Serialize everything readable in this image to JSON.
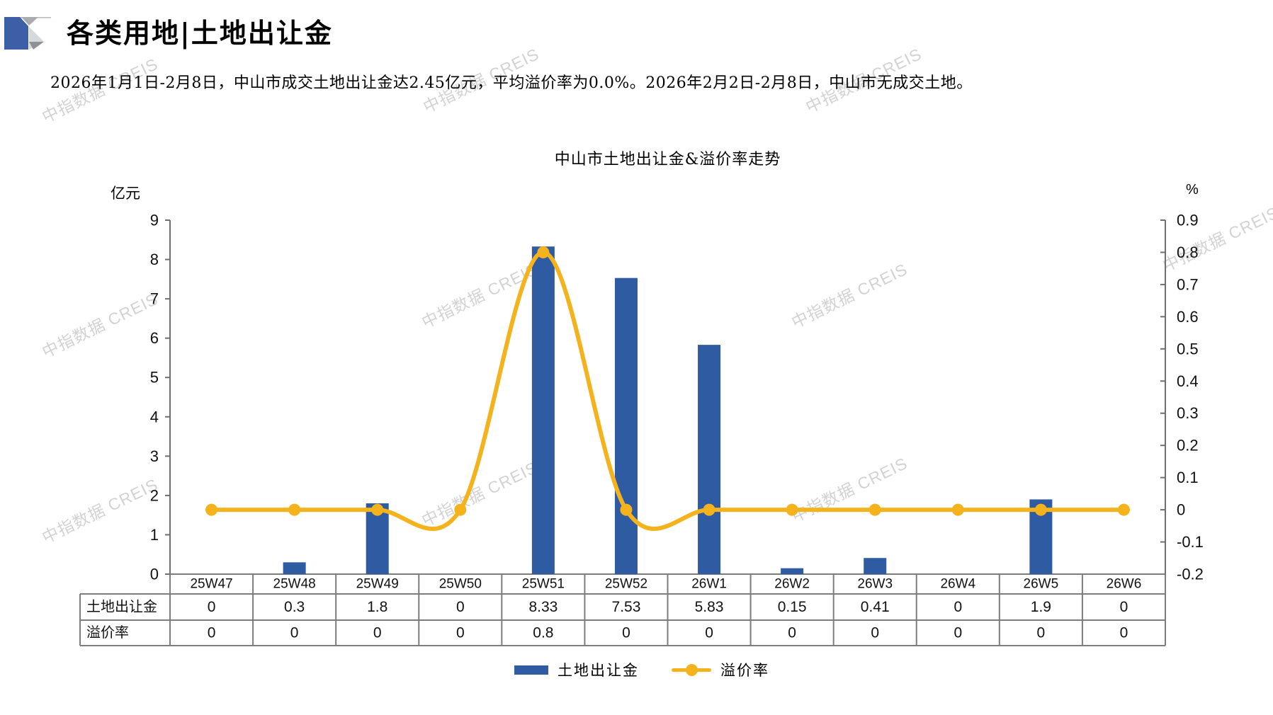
{
  "header": {
    "title": "各类用地|土地出让金"
  },
  "summary": "2026年1月1日-2月8日，中山市成交土地出让金达2.45亿元，平均溢价率为0.0%。2026年2月2日-2月8日，中山市无成交土地。",
  "watermark": {
    "text": "中指数据 CREIS"
  },
  "chart_data": {
    "type": "bar+line combo with data table",
    "title": "中山市土地出让金&溢价率走势",
    "categories": [
      "25W47",
      "25W48",
      "25W49",
      "25W50",
      "25W51",
      "25W52",
      "26W1",
      "26W2",
      "26W3",
      "26W4",
      "26W5",
      "26W6"
    ],
    "series": [
      {
        "name": "土地出让金",
        "type": "bar",
        "axis": "left",
        "color": "#2f5ba3",
        "values": [
          0,
          0.3,
          1.8,
          0,
          8.33,
          7.53,
          5.83,
          0.15,
          0.41,
          0,
          1.9,
          0
        ]
      },
      {
        "name": "溢价率",
        "type": "line",
        "axis": "right",
        "color": "#f4b31c",
        "smooth": true,
        "markers": true,
        "values": [
          0,
          0,
          0,
          0,
          0.8,
          0,
          0,
          0,
          0,
          0,
          0,
          0
        ]
      }
    ],
    "left_axis": {
      "unit": "亿元",
      "min": 0,
      "max": 9,
      "step": 1,
      "ticks": [
        9,
        8,
        7,
        6,
        5,
        4,
        3,
        2,
        1,
        0
      ]
    },
    "right_axis": {
      "unit": "%",
      "min": -0.2,
      "max": 0.9,
      "step": 0.1,
      "ticks": [
        0.9,
        0.8,
        0.7,
        0.6,
        0.5,
        0.4,
        0.3,
        0.2,
        0.1,
        0,
        -0.1,
        -0.2
      ]
    },
    "grid": "off",
    "legend_position": "bottom",
    "table": {
      "row_headers": [
        "土地出让金",
        "溢价率"
      ]
    }
  }
}
